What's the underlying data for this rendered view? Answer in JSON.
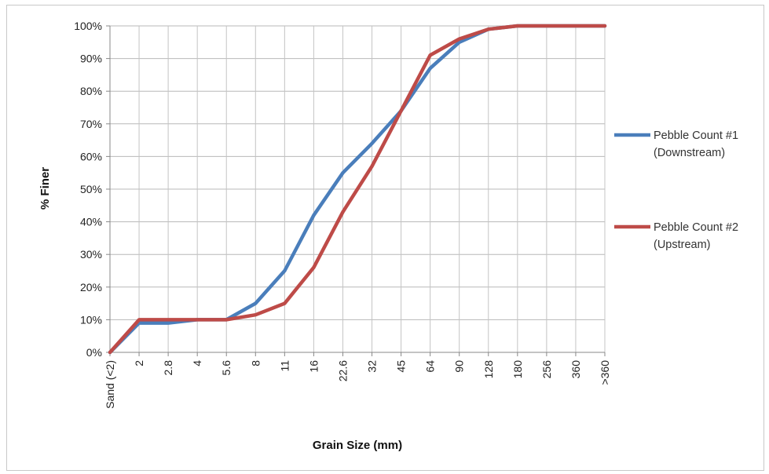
{
  "chart_data": {
    "type": "line",
    "title": "",
    "xlabel": "Grain Size (mm)",
    "ylabel": "% Finer",
    "categories": [
      "Sand (<2)",
      "2",
      "2.8",
      "4",
      "5.6",
      "8",
      "11",
      "16",
      "22.6",
      "32",
      "45",
      "64",
      "90",
      "128",
      "180",
      "256",
      "360",
      ">360"
    ],
    "ylim": [
      0,
      100
    ],
    "yticks": [
      "0%",
      "10%",
      "20%",
      "30%",
      "40%",
      "50%",
      "60%",
      "70%",
      "80%",
      "90%",
      "100%"
    ],
    "grid": true,
    "legend_position": "right",
    "series": [
      {
        "name_lines": [
          "Pebble Count #1",
          "(Downstream)"
        ],
        "color": "#4a7ebb",
        "values": [
          0,
          9,
          9,
          10,
          10,
          15,
          25,
          42,
          55,
          64,
          74,
          87,
          95,
          99,
          100,
          100,
          100,
          100
        ]
      },
      {
        "name_lines": [
          "Pebble Count #2",
          "(Upstream)"
        ],
        "color": "#be4b48",
        "values": [
          0,
          10,
          10,
          10,
          10,
          11.5,
          15,
          26,
          43,
          57,
          74,
          91,
          96,
          99,
          100,
          100,
          100,
          100
        ]
      }
    ]
  }
}
